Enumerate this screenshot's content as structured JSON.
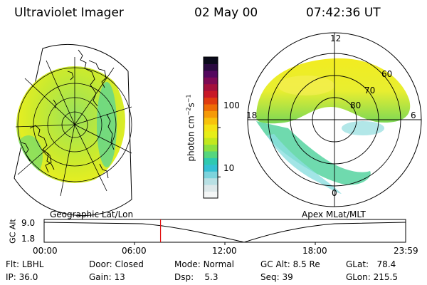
{
  "header": {
    "title": "Ultraviolet Imager",
    "date": "02 May 00",
    "time": "07:42:36 UT"
  },
  "colorbar": {
    "label": "photon cm",
    "label_exp1": "−2",
    "label_mid": "s",
    "label_exp2": "−1",
    "ticks": [
      {
        "value": "100",
        "level": 0.5
      },
      {
        "value": "10",
        "level": 0.15
      }
    ],
    "colors": [
      "#f4f6f6",
      "#dde8ea",
      "#b8e0e4",
      "#7dd3dc",
      "#33c0d4",
      "#2ec9b0",
      "#55d67e",
      "#8ce040",
      "#c2e81e",
      "#e6ee18",
      "#f4e214",
      "#f7c20c",
      "#f59a08",
      "#ee6c06",
      "#e03c10",
      "#c81828",
      "#a4103c",
      "#7e0a54",
      "#54085e",
      "#2a0a40",
      "#0a0a1a"
    ]
  },
  "left_map": {
    "caption": "Geographic Lat/Lon"
  },
  "right_map": {
    "caption": "Apex MLat/MLT",
    "mlt_labels": {
      "top": "12",
      "left": "18",
      "right": "6",
      "bottom": "0"
    },
    "lat_labels": [
      "60",
      "70",
      "80"
    ]
  },
  "timeline": {
    "axis_label": "GC Alt",
    "y_ticks": [
      "9.0",
      "1.8"
    ],
    "x_ticks": [
      "00:00",
      "06:00",
      "12:00",
      "18:00",
      "23:59"
    ],
    "marker_fraction": 0.322
  },
  "info": {
    "flt_label": "Flt:",
    "flt_value": "LBHL",
    "ip_label": "IP:",
    "ip_value": "36.0",
    "door_label": "Door:",
    "door_value": "Closed",
    "gain_label": "Gain:",
    "gain_value": "13",
    "mode_label": "Mode:",
    "mode_value": "Normal",
    "dsp_label": "Dsp:",
    "dsp_value": "5.3",
    "gcalt_label": "GC Alt:",
    "gcalt_value": "8.5 Re",
    "seq_label": "Seq:",
    "seq_value": "39",
    "glat_label": "GLat:",
    "glat_value": "78.4",
    "glon_label": "GLon:",
    "glon_value": "215.5"
  }
}
